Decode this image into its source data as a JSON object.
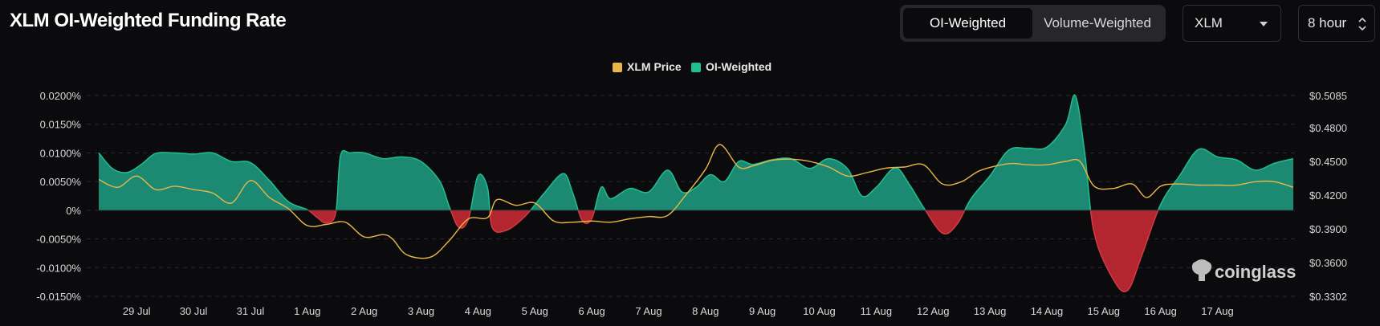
{
  "header": {
    "title": "XLM OI-Weighted Funding Rate",
    "tabs": [
      {
        "label": "OI-Weighted",
        "active": true
      },
      {
        "label": "Volume-Weighted",
        "active": false
      }
    ],
    "coin_select": {
      "value": "XLM"
    },
    "interval_select": {
      "value": "8 hour"
    }
  },
  "legend": {
    "price": {
      "label": "XLM Price",
      "color": "#e8b64a"
    },
    "funding": {
      "label": "OI-Weighted",
      "color": "#1fbf8f"
    }
  },
  "watermark": {
    "text": "coinglass"
  },
  "chart_data": {
    "type": "area",
    "title": "XLM OI-Weighted Funding Rate",
    "x_ticks": [
      "29 Jul",
      "30 Jul",
      "31 Jul",
      "1 Aug",
      "2 Aug",
      "3 Aug",
      "4 Aug",
      "5 Aug",
      "6 Aug",
      "7 Aug",
      "8 Aug",
      "9 Aug",
      "10 Aug",
      "11 Aug",
      "12 Aug",
      "13 Aug",
      "14 Aug",
      "15 Aug",
      "16 Aug",
      "17 Aug"
    ],
    "x_range": [
      "2025-07-28 08:00",
      "2025-08-18 08:00"
    ],
    "left_axis": {
      "ticks": [
        "0.0200%",
        "0.0150%",
        "0.0100%",
        "0.0050%",
        "0%",
        "-0.0050%",
        "-0.0100%",
        "-0.0150%"
      ],
      "range": [
        -0.015,
        0.02
      ],
      "unit": "%"
    },
    "right_axis": {
      "ticks": [
        "$0.5085",
        "$0.4800",
        "$0.4500",
        "$0.4200",
        "$0.3900",
        "$0.3600",
        "$0.3302"
      ],
      "range": [
        0.3302,
        0.5085
      ]
    },
    "grid": true,
    "legend_position": "top-center",
    "positive_color": "#1c8a72",
    "negative_color": "#b3262f",
    "series": [
      {
        "name": "OI-Weighted",
        "unit": "%",
        "points": [
          [
            "2025-07-28 08:00",
            0.01
          ],
          [
            "2025-07-28 14:00",
            0.0072
          ],
          [
            "2025-07-28 20:00",
            0.0066
          ],
          [
            "2025-07-29 02:00",
            0.008
          ],
          [
            "2025-07-29 08:00",
            0.0099
          ],
          [
            "2025-07-29 16:00",
            0.01
          ],
          [
            "2025-07-30 00:00",
            0.0098
          ],
          [
            "2025-07-30 08:00",
            0.01
          ],
          [
            "2025-07-30 16:00",
            0.0085
          ],
          [
            "2025-07-31 00:00",
            0.0083
          ],
          [
            "2025-07-31 08:00",
            0.0052
          ],
          [
            "2025-07-31 16:00",
            0.0015
          ],
          [
            "2025-08-01 00:00",
            0.0001
          ],
          [
            "2025-08-01 04:00",
            -0.0012
          ],
          [
            "2025-08-01 08:00",
            -0.0022
          ],
          [
            "2025-08-01 12:00",
            -0.0005
          ],
          [
            "2025-08-01 14:00",
            0.0095
          ],
          [
            "2025-08-01 18:00",
            0.01
          ],
          [
            "2025-08-02 00:00",
            0.01
          ],
          [
            "2025-08-02 08:00",
            0.009
          ],
          [
            "2025-08-02 16:00",
            0.0093
          ],
          [
            "2025-08-03 00:00",
            0.0085
          ],
          [
            "2025-08-03 08:00",
            0.005
          ],
          [
            "2025-08-03 12:00",
            0.0005
          ],
          [
            "2025-08-03 16:00",
            -0.003
          ],
          [
            "2025-08-03 20:00",
            -0.0015
          ],
          [
            "2025-08-04 00:00",
            0.006
          ],
          [
            "2025-08-04 04:00",
            0.004
          ],
          [
            "2025-08-04 06:00",
            -0.003
          ],
          [
            "2025-08-04 12:00",
            -0.0035
          ],
          [
            "2025-08-04 20:00",
            -0.001
          ],
          [
            "2025-08-05 04:00",
            0.003
          ],
          [
            "2025-08-05 12:00",
            0.0064
          ],
          [
            "2025-08-05 16:00",
            0.003
          ],
          [
            "2025-08-05 20:00",
            -0.0018
          ],
          [
            "2025-08-06 00:00",
            -0.0015
          ],
          [
            "2025-08-06 04:00",
            0.004
          ],
          [
            "2025-08-06 08:00",
            0.002
          ],
          [
            "2025-08-06 16:00",
            0.0038
          ],
          [
            "2025-08-07 00:00",
            0.0032
          ],
          [
            "2025-08-07 08:00",
            0.007
          ],
          [
            "2025-08-07 14:00",
            0.0032
          ],
          [
            "2025-08-07 20:00",
            0.004
          ],
          [
            "2025-08-08 02:00",
            0.0062
          ],
          [
            "2025-08-08 08:00",
            0.005
          ],
          [
            "2025-08-08 14:00",
            0.0085
          ],
          [
            "2025-08-08 20:00",
            0.008
          ],
          [
            "2025-08-09 04:00",
            0.0088
          ],
          [
            "2025-08-09 12:00",
            0.009
          ],
          [
            "2025-08-09 20:00",
            0.0073
          ],
          [
            "2025-08-10 04:00",
            0.009
          ],
          [
            "2025-08-10 12:00",
            0.0072
          ],
          [
            "2025-08-10 18:00",
            0.0025
          ],
          [
            "2025-08-11 00:00",
            0.004
          ],
          [
            "2025-08-11 08:00",
            0.0074
          ],
          [
            "2025-08-11 14:00",
            0.0045
          ],
          [
            "2025-08-11 20:00",
            0.0005
          ],
          [
            "2025-08-12 04:00",
            -0.004
          ],
          [
            "2025-08-12 10:00",
            -0.0025
          ],
          [
            "2025-08-12 16:00",
            0.002
          ],
          [
            "2025-08-13 00:00",
            0.006
          ],
          [
            "2025-08-13 08:00",
            0.0105
          ],
          [
            "2025-08-13 16:00",
            0.0108
          ],
          [
            "2025-08-14 00:00",
            0.011
          ],
          [
            "2025-08-14 08:00",
            0.015
          ],
          [
            "2025-08-14 12:00",
            0.02
          ],
          [
            "2025-08-14 16:00",
            0.01
          ],
          [
            "2025-08-14 20:00",
            -0.004
          ],
          [
            "2025-08-15 04:00",
            -0.012
          ],
          [
            "2025-08-15 10:00",
            -0.014
          ],
          [
            "2025-08-15 16:00",
            -0.008
          ],
          [
            "2025-08-16 00:00",
            0.001
          ],
          [
            "2025-08-16 08:00",
            0.006
          ],
          [
            "2025-08-16 16:00",
            0.0106
          ],
          [
            "2025-08-17 00:00",
            0.0093
          ],
          [
            "2025-08-17 08:00",
            0.0088
          ],
          [
            "2025-08-17 16:00",
            0.007
          ],
          [
            "2025-08-18 00:00",
            0.0082
          ],
          [
            "2025-08-18 08:00",
            0.009
          ]
        ]
      },
      {
        "name": "XLM Price",
        "unit": "$",
        "points": [
          [
            "2025-07-28 08:00",
            0.434
          ],
          [
            "2025-07-28 16:00",
            0.427
          ],
          [
            "2025-07-29 00:00",
            0.437
          ],
          [
            "2025-07-29 08:00",
            0.425
          ],
          [
            "2025-07-29 16:00",
            0.428
          ],
          [
            "2025-07-30 00:00",
            0.425
          ],
          [
            "2025-07-30 08:00",
            0.422
          ],
          [
            "2025-07-30 16:00",
            0.413
          ],
          [
            "2025-07-31 00:00",
            0.433
          ],
          [
            "2025-07-31 08:00",
            0.418
          ],
          [
            "2025-07-31 16:00",
            0.408
          ],
          [
            "2025-08-01 00:00",
            0.393
          ],
          [
            "2025-08-01 08:00",
            0.394
          ],
          [
            "2025-08-01 16:00",
            0.396
          ],
          [
            "2025-08-02 00:00",
            0.383
          ],
          [
            "2025-08-02 08:00",
            0.385
          ],
          [
            "2025-08-02 12:00",
            0.381
          ],
          [
            "2025-08-02 18:00",
            0.367
          ],
          [
            "2025-08-03 04:00",
            0.365
          ],
          [
            "2025-08-03 12:00",
            0.38
          ],
          [
            "2025-08-03 20:00",
            0.399
          ],
          [
            "2025-08-04 04:00",
            0.4
          ],
          [
            "2025-08-04 08:00",
            0.416
          ],
          [
            "2025-08-04 16:00",
            0.411
          ],
          [
            "2025-08-05 00:00",
            0.413
          ],
          [
            "2025-08-05 08:00",
            0.397
          ],
          [
            "2025-08-05 16:00",
            0.396
          ],
          [
            "2025-08-06 00:00",
            0.397
          ],
          [
            "2025-08-06 08:00",
            0.396
          ],
          [
            "2025-08-06 16:00",
            0.399
          ],
          [
            "2025-08-07 00:00",
            0.401
          ],
          [
            "2025-08-07 08:00",
            0.402
          ],
          [
            "2025-08-07 16:00",
            0.421
          ],
          [
            "2025-08-08 00:00",
            0.443
          ],
          [
            "2025-08-08 06:00",
            0.465
          ],
          [
            "2025-08-08 14:00",
            0.445
          ],
          [
            "2025-08-08 20:00",
            0.446
          ],
          [
            "2025-08-09 04:00",
            0.451
          ],
          [
            "2025-08-09 12:00",
            0.452
          ],
          [
            "2025-08-09 20:00",
            0.45
          ],
          [
            "2025-08-10 04:00",
            0.445
          ],
          [
            "2025-08-10 12:00",
            0.437
          ],
          [
            "2025-08-10 20:00",
            0.44
          ],
          [
            "2025-08-11 04:00",
            0.444
          ],
          [
            "2025-08-11 12:00",
            0.445
          ],
          [
            "2025-08-11 20:00",
            0.447
          ],
          [
            "2025-08-12 04:00",
            0.43
          ],
          [
            "2025-08-12 12:00",
            0.432
          ],
          [
            "2025-08-12 20:00",
            0.442
          ],
          [
            "2025-08-13 08:00",
            0.448
          ],
          [
            "2025-08-13 16:00",
            0.447
          ],
          [
            "2025-08-14 00:00",
            0.447
          ],
          [
            "2025-08-14 08:00",
            0.45
          ],
          [
            "2025-08-14 14:00",
            0.45
          ],
          [
            "2025-08-14 20:00",
            0.428
          ],
          [
            "2025-08-15 04:00",
            0.426
          ],
          [
            "2025-08-15 12:00",
            0.43
          ],
          [
            "2025-08-15 18:00",
            0.418
          ],
          [
            "2025-08-16 00:00",
            0.428
          ],
          [
            "2025-08-16 06:00",
            0.43
          ],
          [
            "2025-08-16 16:00",
            0.429
          ],
          [
            "2025-08-17 00:00",
            0.429
          ],
          [
            "2025-08-17 08:00",
            0.429
          ],
          [
            "2025-08-17 16:00",
            0.432
          ],
          [
            "2025-08-18 00:00",
            0.432
          ],
          [
            "2025-08-18 08:00",
            0.427
          ]
        ]
      }
    ]
  }
}
